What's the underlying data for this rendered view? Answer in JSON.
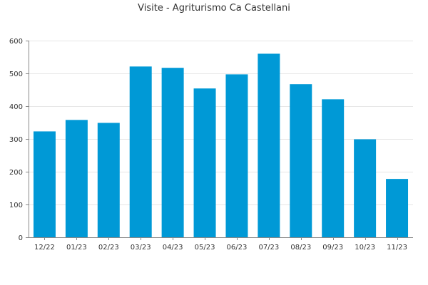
{
  "chart_data": {
    "type": "bar",
    "title": "Visite - Agriturismo Ca Castellani",
    "xlabel": "",
    "ylabel": "",
    "categories": [
      "12/22",
      "01/23",
      "02/23",
      "03/23",
      "04/23",
      "05/23",
      "06/23",
      "07/23",
      "08/23",
      "09/23",
      "10/23",
      "11/23"
    ],
    "values": [
      323,
      358,
      349,
      521,
      517,
      454,
      497,
      560,
      467,
      421,
      299,
      178
    ],
    "ylim": [
      0,
      600
    ],
    "yticks": [
      0,
      100,
      200,
      300,
      400,
      500,
      600
    ],
    "grid": true,
    "legend": "none",
    "bar_color": "#0099d6",
    "gridline_color": "#e6e6e6",
    "axis_color": "#888888",
    "text_color": "#333333"
  }
}
